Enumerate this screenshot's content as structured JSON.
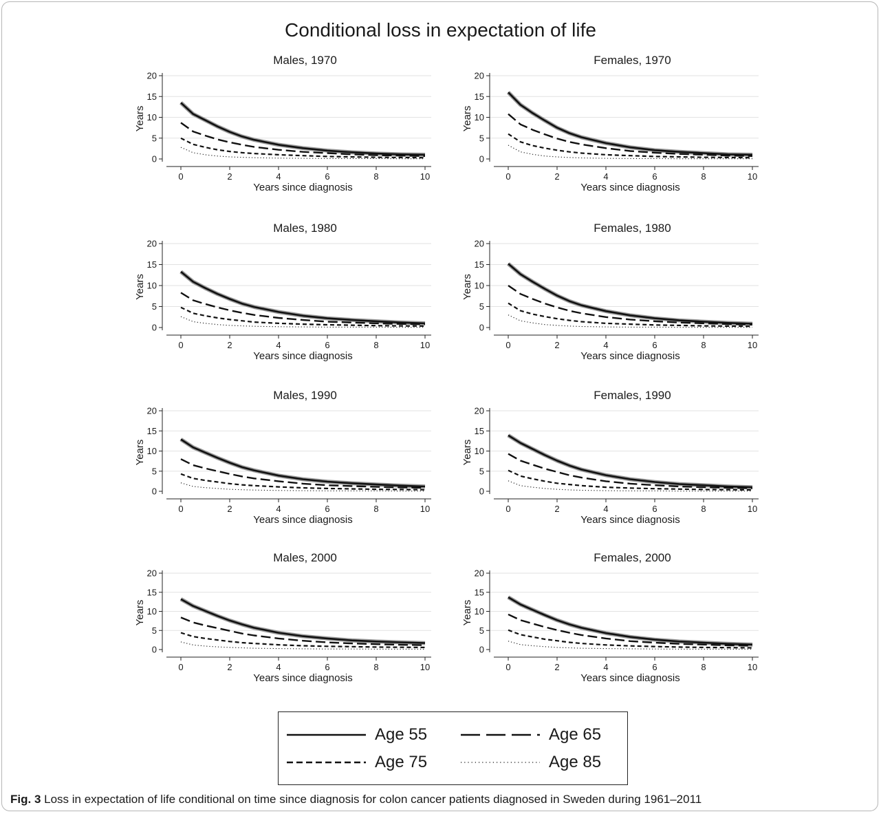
{
  "figure": {
    "title": "Conditional loss in expectation of life",
    "caption_label": "Fig. 3",
    "caption_text": "Loss in expectation of life conditional on time since diagnosis for colon cancer patients diagnosed in Sweden during 1961–2011"
  },
  "legend": {
    "items": [
      {
        "label": "Age 55",
        "style": "solid"
      },
      {
        "label": "Age 65",
        "style": "longdash"
      },
      {
        "label": "Age 75",
        "style": "shortdash"
      },
      {
        "label": "Age 85",
        "style": "dotted"
      }
    ]
  },
  "chart_data": [
    {
      "type": "line",
      "title": "Males, 1970",
      "xlabel": "Years since diagnosis",
      "ylabel": "Years",
      "xlim": [
        0,
        10
      ],
      "ylim": [
        0,
        20
      ],
      "xticks": [
        0,
        2,
        4,
        6,
        8,
        10
      ],
      "yticks": [
        0,
        5,
        10,
        15,
        20
      ],
      "grid": true,
      "x": [
        0,
        0.5,
        1,
        1.5,
        2,
        2.5,
        3,
        4,
        5,
        6,
        7,
        8,
        9,
        10
      ],
      "series": [
        {
          "name": "Age 55",
          "values": [
            13.5,
            10.8,
            9.3,
            7.8,
            6.5,
            5.4,
            4.6,
            3.4,
            2.6,
            2.0,
            1.6,
            1.3,
            1.1,
            1.0
          ]
        },
        {
          "name": "Age 65",
          "values": [
            8.7,
            6.6,
            5.6,
            4.7,
            4.0,
            3.4,
            2.9,
            2.2,
            1.7,
            1.4,
            1.1,
            0.9,
            0.8,
            0.7
          ]
        },
        {
          "name": "Age 75",
          "values": [
            5.0,
            3.5,
            2.8,
            2.2,
            1.8,
            1.5,
            1.3,
            1.0,
            0.8,
            0.6,
            0.5,
            0.4,
            0.35,
            0.3
          ]
        },
        {
          "name": "Age 85",
          "values": [
            2.8,
            1.5,
            1.0,
            0.7,
            0.5,
            0.4,
            0.3,
            0.2,
            0.15,
            0.1,
            0.1,
            0.1,
            0.05,
            0.05
          ]
        }
      ]
    },
    {
      "type": "line",
      "title": "Females, 1970",
      "xlabel": "Years since diagnosis",
      "ylabel": "Years",
      "xlim": [
        0,
        10
      ],
      "ylim": [
        0,
        20
      ],
      "xticks": [
        0,
        2,
        4,
        6,
        8,
        10
      ],
      "yticks": [
        0,
        5,
        10,
        15,
        20
      ],
      "grid": true,
      "x": [
        0,
        0.5,
        1,
        1.5,
        2,
        2.5,
        3,
        4,
        5,
        6,
        7,
        8,
        9,
        10
      ],
      "series": [
        {
          "name": "Age 55",
          "values": [
            16.0,
            13.0,
            11.0,
            9.2,
            7.5,
            6.2,
            5.2,
            3.8,
            2.8,
            2.1,
            1.7,
            1.4,
            1.1,
            1.0
          ]
        },
        {
          "name": "Age 65",
          "values": [
            10.8,
            8.3,
            7.0,
            5.9,
            4.9,
            4.1,
            3.5,
            2.6,
            1.9,
            1.5,
            1.2,
            1.0,
            0.8,
            0.7
          ]
        },
        {
          "name": "Age 75",
          "values": [
            6.0,
            4.1,
            3.2,
            2.6,
            2.1,
            1.7,
            1.4,
            1.0,
            0.8,
            0.6,
            0.5,
            0.4,
            0.35,
            0.3
          ]
        },
        {
          "name": "Age 85",
          "values": [
            3.3,
            1.7,
            1.1,
            0.7,
            0.5,
            0.35,
            0.25,
            0.15,
            0.1,
            0.1,
            0.05,
            0.05,
            0.05,
            0.05
          ]
        }
      ]
    },
    {
      "type": "line",
      "title": "Males, 1980",
      "xlabel": "Years since diagnosis",
      "ylabel": "Years",
      "xlim": [
        0,
        10
      ],
      "ylim": [
        0,
        20
      ],
      "xticks": [
        0,
        2,
        4,
        6,
        8,
        10
      ],
      "yticks": [
        0,
        5,
        10,
        15,
        20
      ],
      "grid": true,
      "x": [
        0,
        0.5,
        1,
        1.5,
        2,
        2.5,
        3,
        4,
        5,
        6,
        7,
        8,
        9,
        10
      ],
      "series": [
        {
          "name": "Age 55",
          "values": [
            13.3,
            10.9,
            9.4,
            8.0,
            6.8,
            5.7,
            4.9,
            3.7,
            2.8,
            2.2,
            1.8,
            1.5,
            1.2,
            1.0
          ]
        },
        {
          "name": "Age 65",
          "values": [
            8.3,
            6.5,
            5.6,
            4.8,
            4.1,
            3.5,
            3.0,
            2.3,
            1.8,
            1.4,
            1.2,
            1.0,
            0.85,
            0.75
          ]
        },
        {
          "name": "Age 75",
          "values": [
            4.8,
            3.4,
            2.8,
            2.3,
            1.9,
            1.6,
            1.3,
            1.0,
            0.8,
            0.65,
            0.55,
            0.45,
            0.4,
            0.35
          ]
        },
        {
          "name": "Age 85",
          "values": [
            2.6,
            1.4,
            1.0,
            0.7,
            0.5,
            0.4,
            0.3,
            0.2,
            0.15,
            0.1,
            0.1,
            0.1,
            0.05,
            0.05
          ]
        }
      ]
    },
    {
      "type": "line",
      "title": "Females, 1980",
      "xlabel": "Years since diagnosis",
      "ylabel": "Years",
      "xlim": [
        0,
        10
      ],
      "ylim": [
        0,
        20
      ],
      "xticks": [
        0,
        2,
        4,
        6,
        8,
        10
      ],
      "yticks": [
        0,
        5,
        10,
        15,
        20
      ],
      "grid": true,
      "x": [
        0,
        0.5,
        1,
        1.5,
        2,
        2.5,
        3,
        4,
        5,
        6,
        7,
        8,
        9,
        10
      ],
      "series": [
        {
          "name": "Age 55",
          "values": [
            15.2,
            12.7,
            10.9,
            9.2,
            7.6,
            6.3,
            5.3,
            3.9,
            2.9,
            2.2,
            1.7,
            1.4,
            1.1,
            0.9
          ]
        },
        {
          "name": "Age 65",
          "values": [
            10.0,
            8.0,
            6.8,
            5.7,
            4.8,
            4.0,
            3.4,
            2.5,
            1.9,
            1.5,
            1.2,
            1.0,
            0.8,
            0.7
          ]
        },
        {
          "name": "Age 75",
          "values": [
            5.8,
            4.0,
            3.2,
            2.6,
            2.1,
            1.7,
            1.4,
            1.0,
            0.8,
            0.6,
            0.5,
            0.4,
            0.35,
            0.3
          ]
        },
        {
          "name": "Age 85",
          "values": [
            3.0,
            1.6,
            1.1,
            0.7,
            0.5,
            0.35,
            0.25,
            0.15,
            0.1,
            0.1,
            0.05,
            0.05,
            0.05,
            0.05
          ]
        }
      ]
    },
    {
      "type": "line",
      "title": "Males, 1990",
      "xlabel": "Years since diagnosis",
      "ylabel": "Years",
      "xlim": [
        0,
        10
      ],
      "ylim": [
        0,
        20
      ],
      "xticks": [
        0,
        2,
        4,
        6,
        8,
        10
      ],
      "yticks": [
        0,
        5,
        10,
        15,
        20
      ],
      "grid": true,
      "x": [
        0,
        0.5,
        1,
        1.5,
        2,
        2.5,
        3,
        4,
        5,
        6,
        7,
        8,
        9,
        10
      ],
      "series": [
        {
          "name": "Age 55",
          "values": [
            12.9,
            10.9,
            9.6,
            8.3,
            7.1,
            6.0,
            5.2,
            3.9,
            3.0,
            2.4,
            2.0,
            1.7,
            1.4,
            1.2
          ]
        },
        {
          "name": "Age 65",
          "values": [
            8.0,
            6.5,
            5.7,
            5.0,
            4.3,
            3.7,
            3.2,
            2.5,
            1.9,
            1.5,
            1.3,
            1.1,
            0.95,
            0.85
          ]
        },
        {
          "name": "Age 75",
          "values": [
            4.3,
            3.2,
            2.7,
            2.3,
            1.9,
            1.6,
            1.4,
            1.1,
            0.85,
            0.7,
            0.6,
            0.5,
            0.45,
            0.4
          ]
        },
        {
          "name": "Age 85",
          "values": [
            2.1,
            1.2,
            0.9,
            0.7,
            0.5,
            0.4,
            0.3,
            0.2,
            0.15,
            0.1,
            0.1,
            0.1,
            0.05,
            0.05
          ]
        }
      ]
    },
    {
      "type": "line",
      "title": "Females, 1990",
      "xlabel": "Years since diagnosis",
      "ylabel": "Years",
      "xlim": [
        0,
        10
      ],
      "ylim": [
        0,
        20
      ],
      "xticks": [
        0,
        2,
        4,
        6,
        8,
        10
      ],
      "yticks": [
        0,
        5,
        10,
        15,
        20
      ],
      "grid": true,
      "x": [
        0,
        0.5,
        1,
        1.5,
        2,
        2.5,
        3,
        4,
        5,
        6,
        7,
        8,
        9,
        10
      ],
      "series": [
        {
          "name": "Age 55",
          "values": [
            13.9,
            12.0,
            10.5,
            9.0,
            7.6,
            6.4,
            5.4,
            4.0,
            3.0,
            2.3,
            1.8,
            1.5,
            1.2,
            1.0
          ]
        },
        {
          "name": "Age 65",
          "values": [
            9.3,
            7.6,
            6.6,
            5.6,
            4.8,
            4.0,
            3.4,
            2.5,
            1.9,
            1.5,
            1.2,
            1.0,
            0.85,
            0.75
          ]
        },
        {
          "name": "Age 75",
          "values": [
            5.2,
            3.8,
            3.1,
            2.5,
            2.0,
            1.7,
            1.4,
            1.0,
            0.8,
            0.65,
            0.55,
            0.45,
            0.4,
            0.35
          ]
        },
        {
          "name": "Age 85",
          "values": [
            2.6,
            1.4,
            1.0,
            0.7,
            0.5,
            0.35,
            0.25,
            0.15,
            0.1,
            0.1,
            0.05,
            0.05,
            0.05,
            0.05
          ]
        }
      ]
    },
    {
      "type": "line",
      "title": "Males, 2000",
      "xlabel": "Years since diagnosis",
      "ylabel": "Years",
      "xlim": [
        0,
        10
      ],
      "ylim": [
        0,
        20
      ],
      "xticks": [
        0,
        2,
        4,
        6,
        8,
        10
      ],
      "yticks": [
        0,
        5,
        10,
        15,
        20
      ],
      "grid": true,
      "x": [
        0,
        0.5,
        1,
        1.5,
        2,
        2.5,
        3,
        4,
        5,
        6,
        7,
        8,
        9,
        10
      ],
      "series": [
        {
          "name": "Age 55",
          "values": [
            13.2,
            11.4,
            10.1,
            8.8,
            7.6,
            6.6,
            5.7,
            4.4,
            3.5,
            2.9,
            2.4,
            2.1,
            1.9,
            1.7
          ]
        },
        {
          "name": "Age 65",
          "values": [
            8.4,
            7.1,
            6.3,
            5.6,
            4.9,
            4.2,
            3.7,
            2.9,
            2.3,
            1.9,
            1.6,
            1.4,
            1.25,
            1.15
          ]
        },
        {
          "name": "Age 75",
          "values": [
            4.4,
            3.4,
            2.9,
            2.5,
            2.1,
            1.8,
            1.6,
            1.25,
            1.0,
            0.85,
            0.75,
            0.65,
            0.6,
            0.55
          ]
        },
        {
          "name": "Age 85",
          "values": [
            2.0,
            1.2,
            0.9,
            0.7,
            0.55,
            0.45,
            0.35,
            0.25,
            0.2,
            0.15,
            0.15,
            0.1,
            0.1,
            0.1
          ]
        }
      ]
    },
    {
      "type": "line",
      "title": "Females, 2000",
      "xlabel": "Years since diagnosis",
      "ylabel": "Years",
      "xlim": [
        0,
        10
      ],
      "ylim": [
        0,
        20
      ],
      "xticks": [
        0,
        2,
        4,
        6,
        8,
        10
      ],
      "yticks": [
        0,
        5,
        10,
        15,
        20
      ],
      "grid": true,
      "x": [
        0,
        0.5,
        1,
        1.5,
        2,
        2.5,
        3,
        4,
        5,
        6,
        7,
        8,
        9,
        10
      ],
      "series": [
        {
          "name": "Age 55",
          "values": [
            13.7,
            11.8,
            10.4,
            9.0,
            7.7,
            6.6,
            5.7,
            4.3,
            3.3,
            2.6,
            2.1,
            1.8,
            1.5,
            1.3
          ]
        },
        {
          "name": "Age 65",
          "values": [
            9.2,
            7.7,
            6.8,
            5.9,
            5.1,
            4.4,
            3.8,
            2.9,
            2.2,
            1.8,
            1.5,
            1.3,
            1.1,
            1.0
          ]
        },
        {
          "name": "Age 75",
          "values": [
            5.1,
            3.9,
            3.3,
            2.7,
            2.3,
            1.9,
            1.6,
            1.2,
            0.95,
            0.8,
            0.65,
            0.55,
            0.5,
            0.45
          ]
        },
        {
          "name": "Age 85",
          "values": [
            2.2,
            1.3,
            1.0,
            0.75,
            0.55,
            0.45,
            0.35,
            0.25,
            0.2,
            0.15,
            0.1,
            0.1,
            0.1,
            0.1
          ]
        }
      ]
    }
  ]
}
